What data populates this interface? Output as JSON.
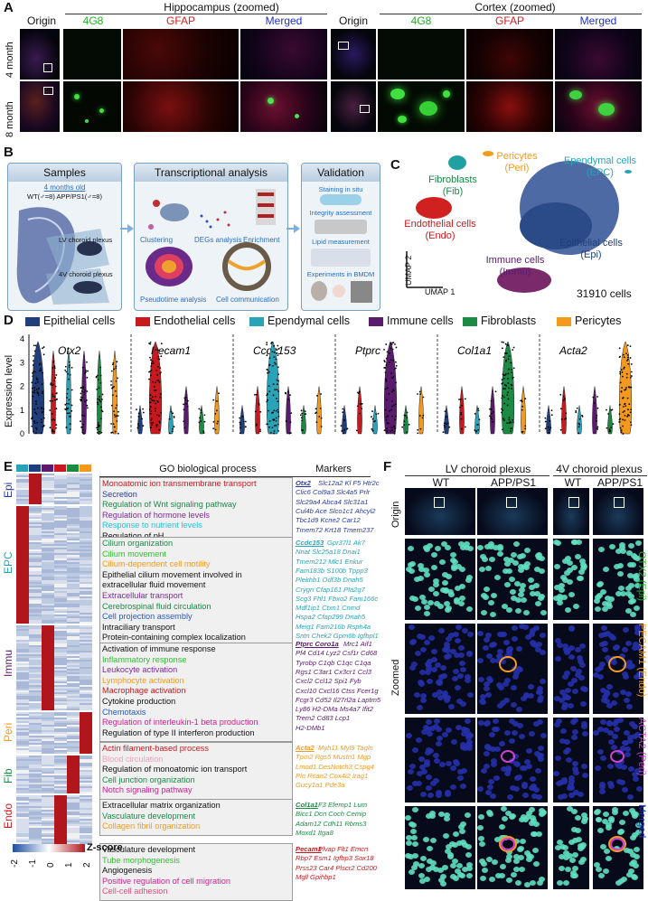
{
  "panels": {
    "a": "A",
    "b": "B",
    "c": "C",
    "d": "D",
    "e": "E",
    "f": "F"
  },
  "panelA": {
    "hippocampus_title": "Hippocampus (zoomed)",
    "cortex_title": "Cortex (zoomed)",
    "origin": "Origin",
    "c4g8": "4G8",
    "cgfap": "GFAP",
    "merged": "Merged",
    "row1": "4 month",
    "row2": "8 month"
  },
  "panelB": {
    "samples_title": "Samples",
    "age_note": "4 months old",
    "groups": "WT(♂=8)  APP/PS1(♂=8)",
    "lv": "LV choroid plexus",
    "v4": "4V choroid plexus",
    "trans_title": "Transcriptional analysis",
    "clustering": "Clustering",
    "degs": "DEGs analysis",
    "enrichment": "Enrichment",
    "pseudotime": "Pseudotime analysis",
    "cellcomm": "Cell communication",
    "valid_title": "Validation",
    "staining": "Staining in situ",
    "integrity": "Integrity assessment",
    "lipid": "Lipid measurement",
    "bmdm": "Experiments in BMDM"
  },
  "panelC": {
    "peri": "Pericytes\n(Peri)",
    "epc": "Ependymal cells\n(EPC)",
    "fib": "Fibroblasts\n(Fib)",
    "endo": "Endothelial cells\n(Endo)",
    "epi": "Epithelial cells\n(Epi)",
    "immu": "Immune cells\n(Immu)",
    "umap1": "UMAP 1",
    "umap2": "UMAP 2",
    "count": "31910 cells"
  },
  "panelD": {
    "legend": [
      {
        "name": "Epithelial cells",
        "color": "#1f3e7a"
      },
      {
        "name": "Endothelial cells",
        "color": "#c9191e"
      },
      {
        "name": "Ependymal cells",
        "color": "#29a3b8"
      },
      {
        "name": "Immune cells",
        "color": "#5a1a6e"
      },
      {
        "name": "Fibroblasts",
        "color": "#1b8a45"
      },
      {
        "name": "Pericytes",
        "color": "#f39a1e"
      }
    ],
    "genes": [
      "Otx2",
      "Pecam1",
      "Ccdc153",
      "Ptprc",
      "Col1a1",
      "Acta2"
    ],
    "ylabel": "Expression level",
    "yticks": [
      "0",
      "1",
      "2",
      "3",
      "4"
    ]
  },
  "panelE": {
    "go_title": "GO biological process",
    "markers_title": "Markers",
    "rows": [
      "Epi",
      "EPC",
      "Immu",
      "Peri",
      "Fib",
      "Endo"
    ],
    "zscore": "Z-score",
    "zticks": [
      "-2",
      "-1",
      "0",
      "1",
      "2"
    ],
    "go": {
      "epi": [
        "Monoatomic ion transmembrane transport",
        "Secretion",
        "Regulation of Wnt signaling pathway",
        "Regulation of hormone levels",
        "Response to nutrient levels",
        "Regulation of pH"
      ],
      "epc": [
        "Cilium organization",
        "Cilium movement",
        "Cilium-dependent  cell motility",
        "Epithelial cilium movement involved in",
        "extracellular fluid movement",
        "Extracellular transport",
        "Cerebrospinal fluid circulation",
        "Cell projection assembly",
        "Intraciliary transport",
        "Protein-containing  complex localization"
      ],
      "immu": [
        "Activation of immune response",
        "Inflammatory response",
        "Leukocyte activation",
        "Lymphocyte activation",
        "Macrophage activation",
        "Cytokine production",
        "Chemotaxis",
        "Regulation of interleukin-1  beta production",
        "Regulation of type II interferon production"
      ],
      "peri": [
        "Actin filament-based  process",
        "Blood circulation",
        "Regulation of monoatomic ion transport",
        "Cell junction organization",
        "Notch signaling pathway"
      ],
      "fib": [
        "Extracellular matrix organization",
        "Vasculature development",
        "Collagen fibril organization"
      ],
      "endo": [
        "Vasculature development",
        "Tube morphogenesis",
        "Angiogenesis",
        "Positive regulation of cell migration",
        "Cell-cell  adhesion"
      ]
    },
    "markers": {
      "epi": [
        "Otx2",
        "Slc12a2 Kl F5 Htr2c",
        "Clic6 Col9a3 Slc4a5 Prlr",
        "Slc29a4 Abca4 Slc31a1",
        "Cul4b Ace Slco1c1 Ahcyl2",
        "Tbc1d9 Kcne2 Car12",
        "Tmem72 Krt18 Tmem237"
      ],
      "epc": [
        "Ccdc153",
        "Gpr37l1 Ak7",
        "Nnat Slc25a18 Dnai1",
        "Tmem212 Mlc1 Enkur",
        "Fam183b S100b Tppp3",
        "Plekhb1 Odf3b Dnah5",
        "Crygn Cfap161 Pla2g7",
        "Scg3 Fhl1 Fbxo2 Fam166c",
        "Mdf1ip1 Ctxn1 Cnmd",
        "Hspa2 Cfap299 Dnah5",
        "Meig1 Fam216b Rsph4a",
        "Sntn Chek2 Gpm6b Igfbpl1"
      ],
      "immu": [
        "Ptprc Coro1a",
        "Mrc1 Aif1",
        "Pf4 Cd14 Lyz2 Csf1r  Cd68",
        "Tyrobp C1qb C1qc C1qa",
        "Rgs1 C3ar1 Cx3cr1 Ccl3",
        "Cxcl2 Ccl12 Spi1 Fyb",
        "Cxcl10 Cxcl16 Ctss Fcer1g",
        "Fcgr3  Cd52 Il27rl2a Laptm5",
        "Ly86 H2-DMa Ms4a7 Ifit2",
        "Trem2  Cd83 Lcp1",
        "H2-DMb1"
      ],
      "peri": [
        "Acta2",
        "Myh11 Myl9 Tagln",
        "Tpm2 Rgs5 Mustn1 Mgp",
        "Lmod1 DesNotch3 Cspg4",
        "Pln Rcan2 Cox4i2 Irag1",
        "Gucy1a1 Pde3a"
      ],
      "fib": [
        "Col1a1",
        "F3 Efemp1 Lum",
        "Bicc1 Dcn Coch Cemip",
        "Adam12 Cdh11 Rbms3",
        "Moxd1 Itga8"
      ],
      "endo": [
        "Pecam1",
        "Plvap Flt1 Emcn",
        "Rbp7 Esm1 Igfbp3 Sox18",
        "Prss23 Car4 Plscr2 Cd200",
        "Mgll Gpihbp1"
      ]
    }
  },
  "panelF": {
    "lv": "LV choroid plexus",
    "v4": "4V choroid plexus",
    "wt": "WT",
    "app": "APP/PS1",
    "origin": "Origin",
    "zoomed": "Zoomed",
    "otx2": "OTX2 (Epi)",
    "pecam1": "PECAM1 (Endo)",
    "acta2": "ACTA2 (Peri)",
    "merged": "Merged"
  }
}
